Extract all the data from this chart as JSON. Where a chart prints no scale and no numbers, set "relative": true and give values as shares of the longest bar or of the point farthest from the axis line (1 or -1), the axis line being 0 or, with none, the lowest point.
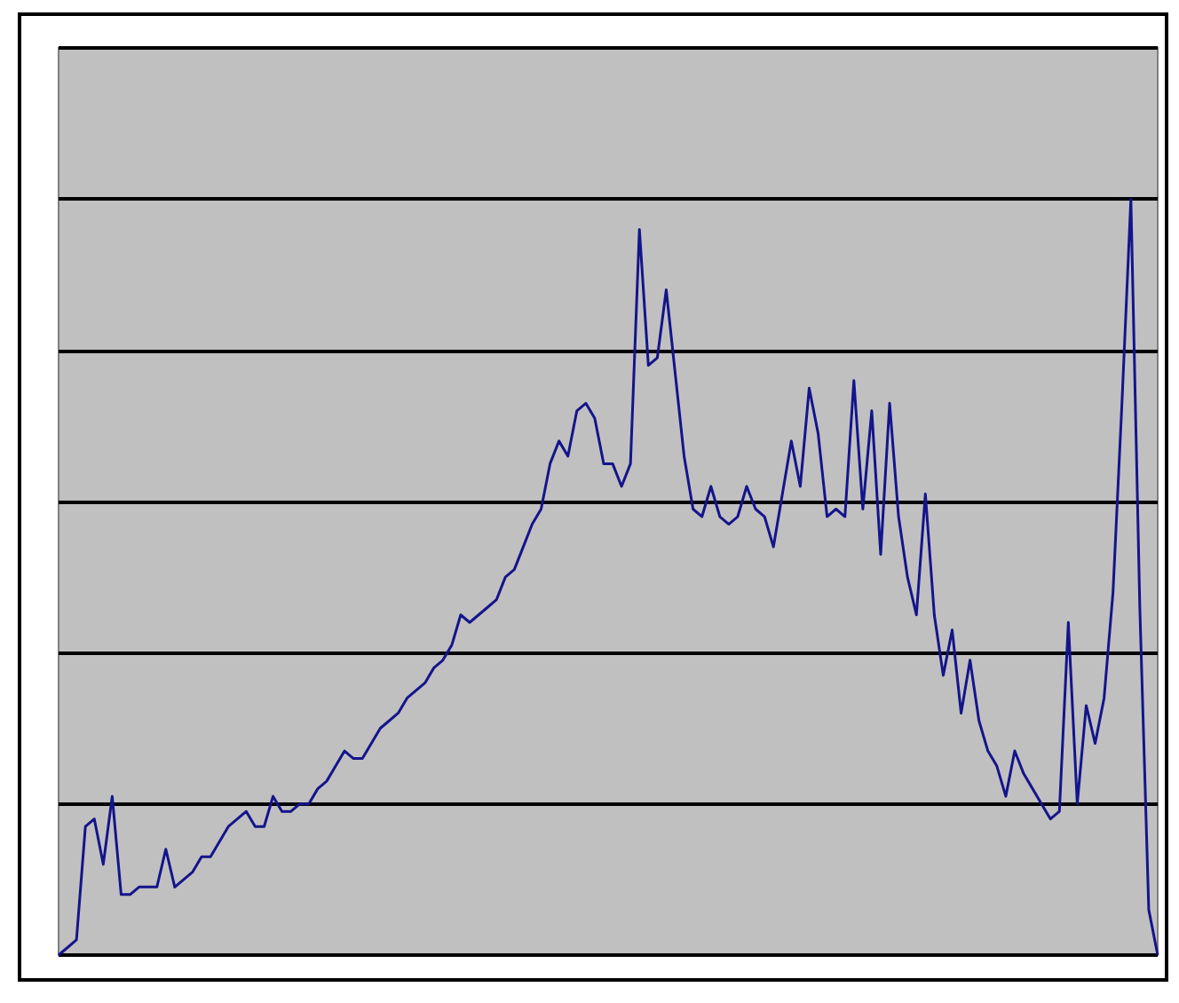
{
  "chart_data": {
    "type": "line",
    "relative": true,
    "grid": "y",
    "line_style": "solid",
    "categories": [
      null,
      null,
      null,
      null,
      null,
      null,
      null,
      null,
      null,
      null,
      null,
      null,
      null,
      null,
      null,
      null,
      null,
      null,
      null,
      null,
      null,
      null,
      null,
      null,
      null,
      null,
      null,
      null,
      null,
      null,
      null,
      null,
      null,
      null,
      null,
      null,
      null,
      null,
      null,
      null,
      null,
      null,
      null,
      null,
      null,
      null,
      null,
      null,
      null,
      null,
      null,
      null,
      null,
      null,
      null,
      null,
      null,
      null,
      null,
      null,
      null,
      null,
      null,
      null,
      null,
      null,
      null,
      null,
      null,
      null,
      null,
      null,
      null,
      null,
      null,
      null,
      null,
      null,
      null,
      null,
      null,
      null,
      null,
      null,
      null,
      null,
      null,
      null,
      null,
      null,
      null,
      null,
      null,
      null,
      null,
      null,
      null,
      null,
      null,
      null,
      null,
      null,
      null,
      null,
      null,
      null,
      null,
      null,
      null,
      null,
      null,
      null,
      null,
      null,
      null,
      null,
      null,
      null,
      null,
      null,
      null,
      null,
      null,
      null
    ],
    "series": [
      {
        "color": "#14148c",
        "values": [
          0,
          0.01,
          0.02,
          0.17,
          0.18,
          0.12,
          0.21,
          0.08,
          0.08,
          0.09,
          0.09,
          0.09,
          0.14,
          0.09,
          0.1,
          0.11,
          0.13,
          0.13,
          0.15,
          0.17,
          0.18,
          0.19,
          0.17,
          0.17,
          0.21,
          0.19,
          0.19,
          0.2,
          0.2,
          0.22,
          0.23,
          0.25,
          0.27,
          0.26,
          0.26,
          0.28,
          0.3,
          0.31,
          0.32,
          0.34,
          0.35,
          0.36,
          0.38,
          0.39,
          0.41,
          0.45,
          0.44,
          0.45,
          0.46,
          0.47,
          0.5,
          0.51,
          0.54,
          0.57,
          0.59,
          0.65,
          0.68,
          0.66,
          0.72,
          0.73,
          0.71,
          0.65,
          0.65,
          0.62,
          0.65,
          0.96,
          0.78,
          0.79,
          0.88,
          0.77,
          0.66,
          0.59,
          0.58,
          0.62,
          0.58,
          0.57,
          0.58,
          0.62,
          0.59,
          0.58,
          0.54,
          0.61,
          0.68,
          0.62,
          0.75,
          0.69,
          0.58,
          0.59,
          0.58,
          0.76,
          0.59,
          0.72,
          0.53,
          0.73,
          0.58,
          0.5,
          0.45,
          0.61,
          0.45,
          0.37,
          0.43,
          0.32,
          0.39,
          0.31,
          0.27,
          0.25,
          0.21,
          0.27,
          0.24,
          0.22,
          0.2,
          0.18,
          0.19,
          0.44,
          0.2,
          0.33,
          0.28,
          0.34,
          0.48,
          0.73,
          1.0,
          0.46,
          0.06,
          0
        ]
      }
    ]
  }
}
